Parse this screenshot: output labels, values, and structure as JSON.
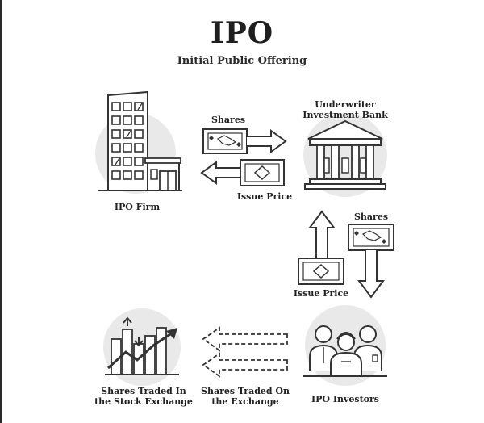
{
  "header": {
    "title": "IPO",
    "subtitle": "Initial Public Offering"
  },
  "nodes": {
    "ipo_firm": "IPO Firm",
    "underwriter_line1": "Underwriter",
    "underwriter_line2": "Investment Bank",
    "ipo_investors": "IPO Investors",
    "exchange_line1": "Shares Traded In",
    "exchange_line2": "the Stock Exchange"
  },
  "flows": {
    "shares_top": "Shares",
    "issue_price_top": "Issue Price",
    "shares_right": "Shares",
    "issue_price_right": "Issue Price",
    "traded_line1": "Shares Traded On",
    "traded_line2": "the Exchange"
  },
  "colors": {
    "line": "#333333",
    "circle": "#e9e9e9",
    "fill": "#ffffff"
  }
}
